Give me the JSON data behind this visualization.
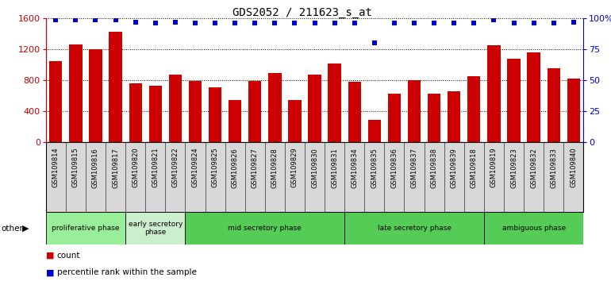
{
  "title": "GDS2052 / 211623_s_at",
  "samples": [
    "GSM109814",
    "GSM109815",
    "GSM109816",
    "GSM109817",
    "GSM109820",
    "GSM109821",
    "GSM109822",
    "GSM109824",
    "GSM109825",
    "GSM109826",
    "GSM109827",
    "GSM109828",
    "GSM109829",
    "GSM109830",
    "GSM109831",
    "GSM109834",
    "GSM109835",
    "GSM109836",
    "GSM109837",
    "GSM109838",
    "GSM109839",
    "GSM109818",
    "GSM109819",
    "GSM109823",
    "GSM109832",
    "GSM109833",
    "GSM109840"
  ],
  "counts": [
    1050,
    1260,
    1200,
    1430,
    760,
    730,
    870,
    790,
    710,
    540,
    790,
    890,
    540,
    870,
    1010,
    780,
    290,
    620,
    800,
    620,
    660,
    850,
    1250,
    1080,
    1160,
    950,
    820
  ],
  "percentile": [
    99,
    99,
    99,
    99,
    97,
    96,
    97,
    96,
    96,
    96,
    96,
    96,
    96,
    96,
    96,
    96,
    80,
    96,
    96,
    96,
    96,
    96,
    99,
    96,
    96,
    96,
    97
  ],
  "phases": [
    {
      "label": "proliferative phase",
      "start": 0,
      "end": 3,
      "color": "#99ee99"
    },
    {
      "label": "early secretory\nphase",
      "start": 4,
      "end": 6,
      "color": "#cceecc"
    },
    {
      "label": "mid secretory phase",
      "start": 7,
      "end": 14,
      "color": "#55cc55"
    },
    {
      "label": "late secretory phase",
      "start": 15,
      "end": 21,
      "color": "#55cc55"
    },
    {
      "label": "ambiguous phase",
      "start": 22,
      "end": 26,
      "color": "#55cc55"
    }
  ],
  "bar_color": "#cc0000",
  "dot_color": "#0000cc",
  "ylim_left": [
    0,
    1600
  ],
  "ylim_right": [
    0,
    100
  ],
  "yticks_left": [
    0,
    400,
    800,
    1200,
    1600
  ],
  "yticks_right": [
    0,
    25,
    50,
    75,
    100
  ],
  "xtick_bg": "#d8d8d8",
  "plot_bg": "#ffffff"
}
